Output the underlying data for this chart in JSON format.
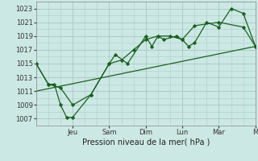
{
  "bg_color": "#cce8e4",
  "grid_color": "#aaccc8",
  "line_color": "#1a6020",
  "xlabel": "Pression niveau de la mer( hPa )",
  "yticks": [
    1007,
    1009,
    1011,
    1013,
    1015,
    1017,
    1019,
    1021,
    1023
  ],
  "ylim": [
    1006.0,
    1024.0
  ],
  "xlim": [
    0,
    9.0
  ],
  "xtick_labels": [
    "Jeu",
    "Sam",
    "Dim",
    "Lun",
    "Mar",
    "M"
  ],
  "xtick_positions": [
    1.5,
    3.0,
    4.5,
    6.0,
    7.5,
    9.0
  ],
  "line1_x": [
    0,
    0.5,
    0.75,
    1.0,
    1.25,
    1.5,
    2.25,
    3.0,
    3.25,
    3.75,
    4.5,
    4.75,
    5.0,
    5.5,
    6.0,
    6.25,
    6.5,
    7.0,
    7.5,
    8.0,
    8.5,
    9.0
  ],
  "line1_y": [
    1015,
    1012,
    1012,
    1009,
    1007.2,
    1007.2,
    1010.5,
    1015,
    1016.3,
    1015,
    1019,
    1017.5,
    1019,
    1019,
    1018.5,
    1017.5,
    1018,
    1021,
    1020.3,
    1023,
    1022.3,
    1017.5
  ],
  "line2_x": [
    0,
    0.5,
    1.0,
    1.5,
    2.25,
    3.0,
    3.5,
    4.0,
    4.5,
    5.0,
    5.25,
    5.75,
    6.0,
    6.5,
    7.5,
    8.5,
    9.0
  ],
  "line2_y": [
    1015,
    1012,
    1011.5,
    1009,
    1010.5,
    1015,
    1015.5,
    1017,
    1018.5,
    1019,
    1018.5,
    1019,
    1018.5,
    1020.5,
    1021,
    1020.3,
    1017.5
  ],
  "trend_x": [
    0,
    9.0
  ],
  "trend_y": [
    1011.0,
    1017.5
  ]
}
